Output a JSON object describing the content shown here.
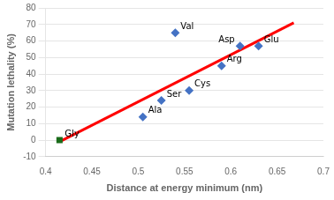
{
  "chart_data": {
    "type": "scatter",
    "xlabel": "Distance at energy minimum (nm)",
    "ylabel": "Mutation lethality (%)",
    "series": [
      {
        "type": "line",
        "color": "red",
        "x": [
          0.415,
          0.668
        ],
        "values": [
          -1,
          71
        ]
      },
      {
        "type": "scatter",
        "color": "#1a6b1a",
        "marker": "square",
        "x": [
          0.415
        ],
        "values": [
          0
        ],
        "labels": [
          "Gly"
        ]
      },
      {
        "type": "scatter",
        "color": "#4472c4",
        "marker": "diamond",
        "x": [
          0.505,
          0.525,
          0.555,
          0.54,
          0.59,
          0.61,
          0.63
        ],
        "values": [
          14,
          24,
          30,
          65,
          45,
          57,
          57
        ],
        "labels": [
          "Ala",
          "Ser",
          "Cys",
          "Val",
          "Arg",
          "Asp",
          "Glu"
        ]
      }
    ],
    "xlim": [
      0.4,
      0.7
    ],
    "ylim": [
      -10,
      80
    ],
    "xticks": [
      0.4,
      0.45,
      0.5,
      0.55,
      0.6,
      0.65,
      0.7
    ],
    "yticks": [
      -10,
      0,
      10,
      20,
      30,
      40,
      50,
      60,
      70,
      80
    ],
    "grid": "y"
  }
}
